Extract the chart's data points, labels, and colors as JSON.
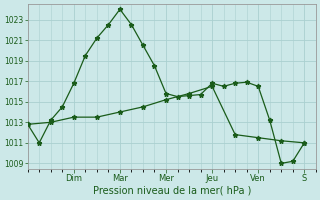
{
  "title": "",
  "xlabel": "Pression niveau de la mer( hPa )",
  "ylabel": "",
  "bg_color": "#cce8e8",
  "grid_color": "#aad0d0",
  "line_color": "#1a5c1a",
  "ylim": [
    1008.5,
    1024.5
  ],
  "yticks": [
    1009,
    1011,
    1013,
    1015,
    1017,
    1019,
    1021,
    1023
  ],
  "day_labels": [
    "Dim",
    "Mar",
    "Mer",
    "Jeu",
    "Ven",
    "S"
  ],
  "day_positions": [
    24,
    48,
    72,
    96,
    120,
    144
  ],
  "xlim": [
    0,
    150
  ],
  "series1_x": [
    0,
    6,
    12,
    18,
    24,
    30,
    36,
    42,
    48,
    54,
    60,
    66,
    72,
    78,
    84,
    90,
    96,
    102,
    108,
    114,
    120,
    126,
    132,
    138,
    144
  ],
  "series1_y": [
    1012.8,
    1011.0,
    1013.2,
    1014.5,
    1016.8,
    1019.5,
    1021.2,
    1022.5,
    1024.0,
    1022.5,
    1020.5,
    1018.5,
    1015.8,
    1015.5,
    1015.6,
    1015.7,
    1016.8,
    1016.5,
    1016.8,
    1016.9,
    1016.5,
    1013.2,
    1009.0,
    1009.2,
    1011.0
  ],
  "series2_x": [
    0,
    12,
    24,
    36,
    48,
    60,
    72,
    84,
    96,
    108,
    120,
    132,
    144
  ],
  "series2_y": [
    1012.8,
    1013.0,
    1013.5,
    1013.5,
    1014.0,
    1014.5,
    1015.2,
    1015.8,
    1016.5,
    1011.8,
    1011.5,
    1011.2,
    1011.0
  ]
}
